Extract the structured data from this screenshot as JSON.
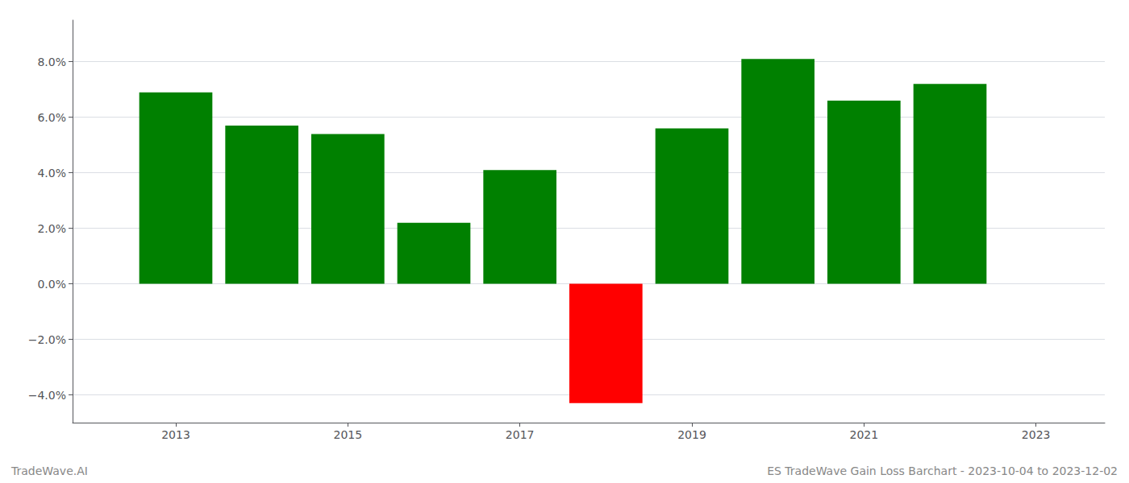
{
  "chart_data": {
    "type": "bar",
    "x": [
      2013,
      2014,
      2015,
      2016,
      2017,
      2018,
      2019,
      2020,
      2021,
      2022
    ],
    "values": [
      0.069,
      0.057,
      0.054,
      0.022,
      0.041,
      -0.043,
      0.056,
      0.081,
      0.066,
      0.072
    ],
    "colors": [
      "#008000",
      "#008000",
      "#008000",
      "#008000",
      "#008000",
      "#ff0000",
      "#008000",
      "#008000",
      "#008000",
      "#008000"
    ],
    "xlim": [
      2011.8,
      2023.8
    ],
    "xticks": [
      2013,
      2015,
      2017,
      2019,
      2021,
      2023
    ],
    "ylim": [
      -0.05,
      0.095
    ],
    "yticks": [
      {
        "value": -0.04,
        "label": "−4.0%"
      },
      {
        "value": -0.02,
        "label": "−2.0%"
      },
      {
        "value": 0.0,
        "label": "0.0%"
      },
      {
        "value": 0.02,
        "label": "2.0%"
      },
      {
        "value": 0.04,
        "label": "4.0%"
      },
      {
        "value": 0.06,
        "label": "6.0%"
      },
      {
        "value": 0.08,
        "label": "8.0%"
      }
    ],
    "grid": true,
    "annotations": [
      "TradeWave.AI",
      "ES TradeWave Gain Loss Barchart - 2023-10-04 to 2023-12-02"
    ]
  }
}
